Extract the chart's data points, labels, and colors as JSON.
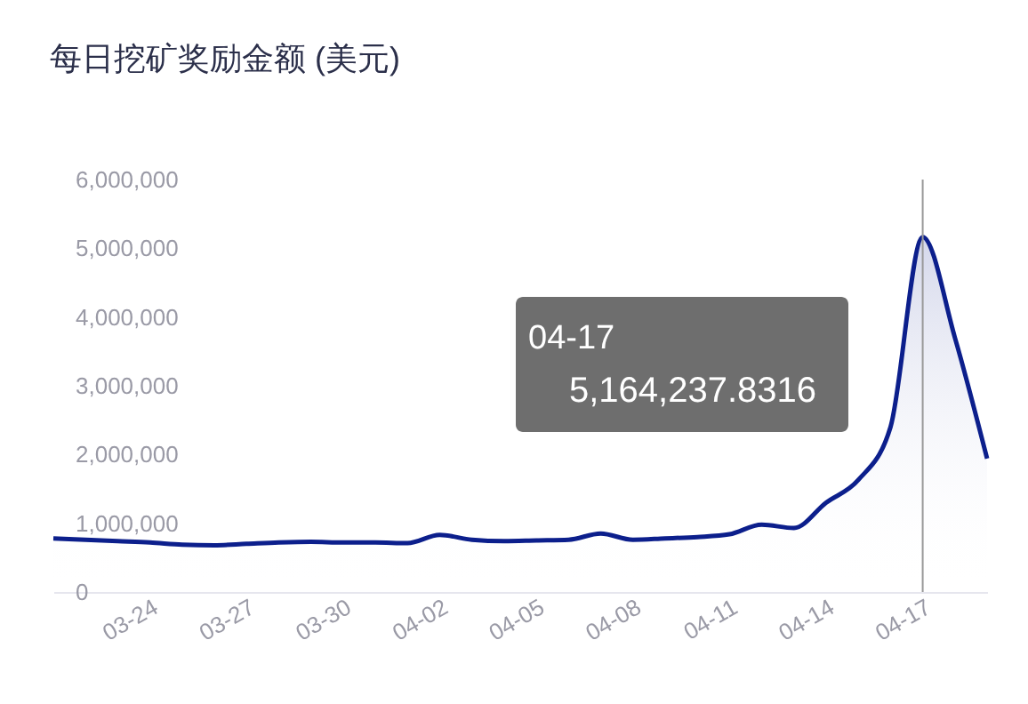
{
  "chart_data": {
    "type": "area",
    "title": "每日挖矿奖励金额 (美元)",
    "x": [
      "--03-21",
      "--03-22",
      "--03-23",
      "--03-24",
      "--03-25",
      "--03-26",
      "--03-27",
      "--03-28",
      "--03-29",
      "--03-30",
      "--03-31",
      "--04-01",
      "--04-02",
      "--04-03",
      "--04-04",
      "--04-05",
      "--04-06",
      "--04-07",
      "--04-08",
      "--04-09",
      "--04-10",
      "--04-11",
      "--04-12",
      "--04-13",
      "--04-14",
      "--04-15",
      "--04-16",
      "--04-17",
      "--04-18",
      "--04-19"
    ],
    "series": [
      {
        "color": "#0c1f8c",
        "values": [
          780000,
          760000,
          740000,
          720000,
          690000,
          680000,
          700000,
          720000,
          730000,
          720000,
          720000,
          710000,
          830000,
          760000,
          740000,
          750000,
          760000,
          850000,
          760000,
          780000,
          800000,
          840000,
          980000,
          930000,
          1300000,
          1630000,
          2400000,
          5164237.8316,
          3700000,
          1940000
        ]
      }
    ],
    "xticks": [
      {
        "value": "--03-24",
        "label": "03-24"
      },
      {
        "value": "--03-27",
        "label": "03-27"
      },
      {
        "value": "--03-30",
        "label": "03-30"
      },
      {
        "value": "--04-02",
        "label": "04-02"
      },
      {
        "value": "--04-05",
        "label": "04-05"
      },
      {
        "value": "--04-08",
        "label": "04-08"
      },
      {
        "value": "--04-11",
        "label": "04-11"
      },
      {
        "value": "--04-14",
        "label": "04-14"
      },
      {
        "value": "--04-17",
        "label": "04-17"
      }
    ],
    "xlim": [
      "--03-21",
      "--04-19"
    ],
    "ylim": [
      0,
      6000000
    ],
    "yticks": [
      0,
      {
        "value": 1000000,
        "label": "1,000,000"
      },
      {
        "value": 2000000,
        "label": "2,000,000"
      },
      {
        "value": 3000000,
        "label": "3,000,000"
      },
      {
        "value": 4000000,
        "label": "4,000,000"
      },
      {
        "value": 5000000,
        "label": "5,000,000"
      },
      {
        "value": 6000000,
        "label": "6,000,000"
      }
    ],
    "grid": false,
    "ref_lines": [
      {
        "axis": "x",
        "value": "--04-17",
        "color": "#999999"
      }
    ],
    "annotations": [
      "04-17",
      "5,164,237.8316"
    ]
  }
}
